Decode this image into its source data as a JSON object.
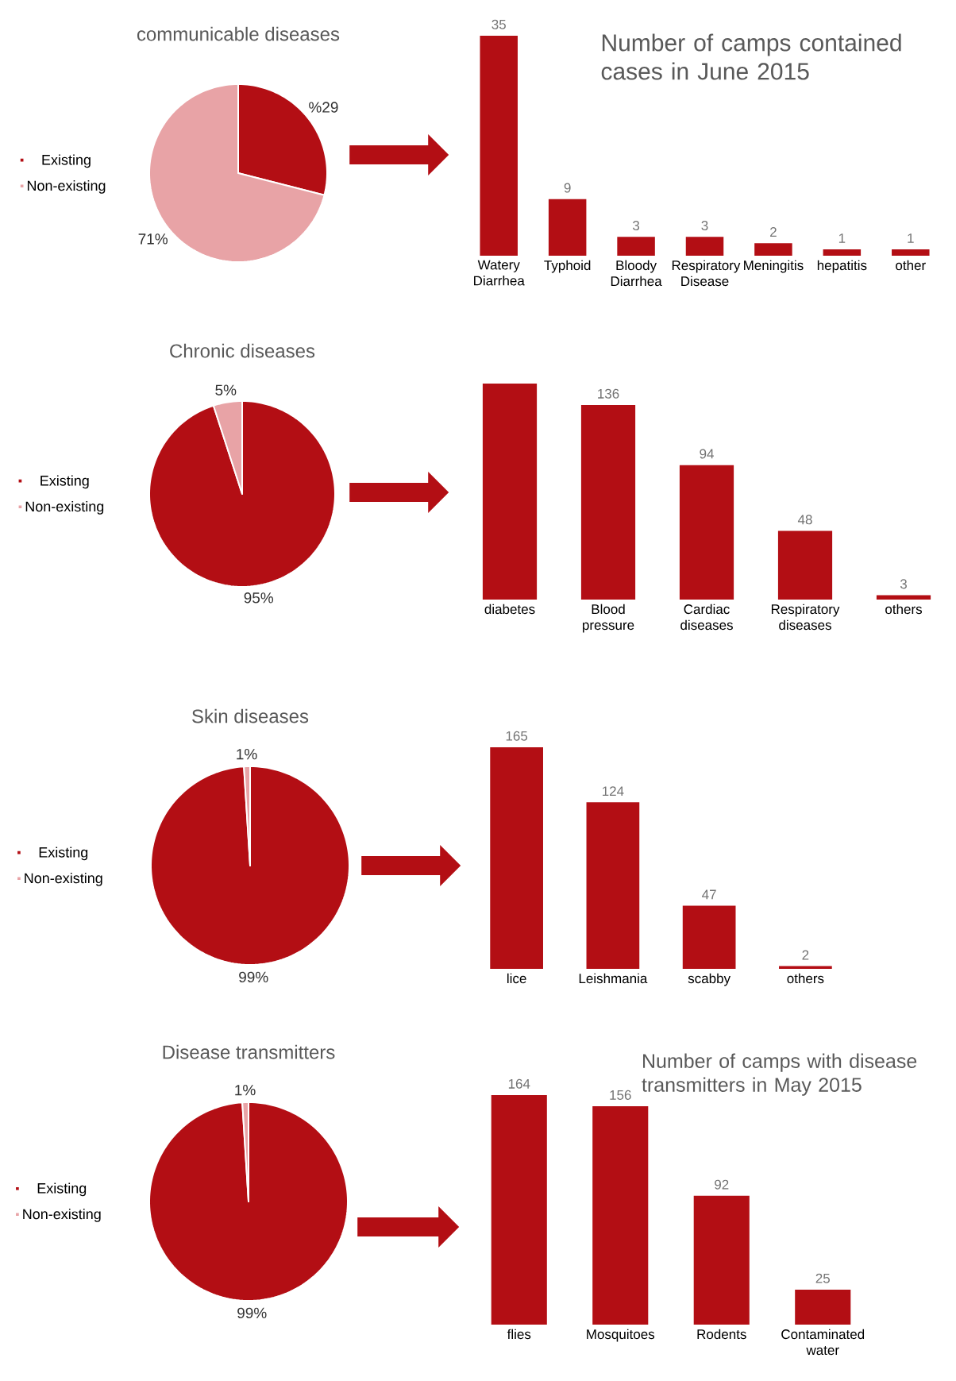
{
  "chart_data": [
    {
      "type": "pie",
      "title": "communicable diseases",
      "categories": [
        "Existing",
        "Non-existing"
      ],
      "values": [
        29,
        71
      ],
      "value_labels": [
        "%29",
        "71%"
      ],
      "colors": [
        "#b30e14",
        "#e8a3a6"
      ],
      "legend": "left"
    },
    {
      "type": "bar",
      "title": "Number of camps contained cases in June 2015",
      "categories": [
        "Watery Diarrhea",
        "Typhoid",
        "Bloody Diarrhea",
        "Respiratory Disease",
        "Meningitis",
        "hepatitis",
        "other"
      ],
      "values": [
        35,
        9,
        3,
        3,
        2,
        1,
        1
      ],
      "color": "#b30e14",
      "data_labels": true
    },
    {
      "type": "pie",
      "title": "Chronic diseases",
      "categories": [
        "Existing",
        "Non-existing"
      ],
      "values": [
        95,
        5
      ],
      "value_labels": [
        "95%",
        "5%"
      ],
      "colors": [
        "#b30e14",
        "#e8a3a6"
      ],
      "legend": "left"
    },
    {
      "type": "bar",
      "categories": [
        "diabetes",
        "Blood pressure",
        "Cardiac diseases",
        "Respiratory diseases",
        "others"
      ],
      "values": [
        151,
        136,
        94,
        48,
        3
      ],
      "value_labels": [
        null,
        "136",
        "94",
        "48",
        "3"
      ],
      "color": "#b30e14"
    },
    {
      "type": "pie",
      "title": "Skin diseases",
      "categories": [
        "Existing",
        "Non-existing"
      ],
      "values": [
        99,
        1
      ],
      "value_labels": [
        "99%",
        "1%"
      ],
      "colors": [
        "#b30e14",
        "#e8a3a6"
      ],
      "legend": "left"
    },
    {
      "type": "bar",
      "categories": [
        "lice",
        "Leishmania",
        "scabby",
        "others"
      ],
      "values": [
        165,
        124,
        47,
        2
      ],
      "color": "#b30e14",
      "data_labels": true
    },
    {
      "type": "pie",
      "title": "Disease transmitters",
      "categories": [
        "Existing",
        "Non-existing"
      ],
      "values": [
        99,
        1
      ],
      "value_labels": [
        "99%",
        "1%"
      ],
      "colors": [
        "#b30e14",
        "#e8a3a6"
      ],
      "legend": "left"
    },
    {
      "type": "bar",
      "title": "Number of camps with disease transmitters in May 2015",
      "categories": [
        "flies",
        "Mosquitoes",
        "Rodents",
        "Contaminated water"
      ],
      "values": [
        164,
        156,
        92,
        25
      ],
      "color": "#b30e14",
      "data_labels": true
    }
  ]
}
